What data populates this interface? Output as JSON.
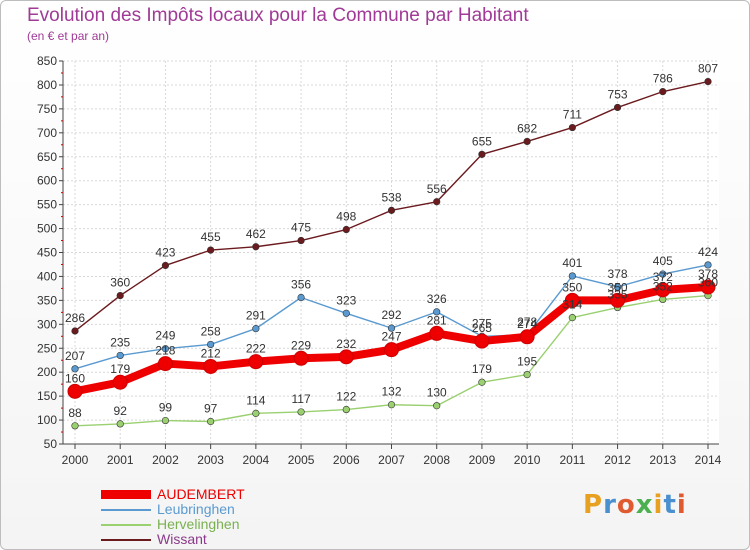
{
  "header": {
    "title": "Evolution des Impôts locaux pour la Commune par Habitant",
    "subtitle": "(en € et par an)"
  },
  "logo": {
    "text": "Proxiti",
    "colors": [
      "#e8a020",
      "#4a90d0",
      "#e05a30",
      "#4ab050",
      "#e8a020",
      "#4a90d0",
      "#e05a30"
    ]
  },
  "chart_data": {
    "type": "line",
    "x": [
      2000,
      2001,
      2002,
      2003,
      2004,
      2005,
      2006,
      2007,
      2008,
      2009,
      2010,
      2011,
      2012,
      2013,
      2014
    ],
    "ylim": [
      50,
      850
    ],
    "yticks": [
      50,
      100,
      150,
      200,
      250,
      300,
      350,
      400,
      450,
      500,
      550,
      600,
      650,
      700,
      750,
      800,
      850
    ],
    "grid": true,
    "legend_position": "bottom-left",
    "series": [
      {
        "name": "Wissant",
        "color": "#6b1a1e",
        "values": [
          286,
          360,
          423,
          455,
          462,
          475,
          498,
          538,
          556,
          655,
          682,
          711,
          753,
          786,
          807
        ],
        "labels": [
          "286",
          "360",
          "423",
          "455",
          "462",
          "475",
          "498",
          "538",
          "556",
          "655",
          "682",
          "711",
          "753",
          "786",
          "807"
        ]
      },
      {
        "name": "Leubringhen",
        "color": "#5a9ad0",
        "values": [
          207,
          235,
          249,
          258,
          291,
          356,
          323,
          292,
          326,
          275,
          278,
          401,
          378,
          405,
          424
        ],
        "labels": [
          "207",
          "235",
          "249",
          "258",
          "291",
          "356",
          "323",
          "292",
          "326",
          "275",
          "278",
          "401",
          "378",
          "405",
          "424"
        ]
      },
      {
        "name": "Hervelinghen",
        "color": "#9ad070",
        "values": [
          88,
          92,
          99,
          97,
          114,
          117,
          122,
          132,
          130,
          179,
          195,
          314,
          335,
          352,
          360
        ],
        "labels": [
          "88",
          "92",
          "99",
          "97",
          "114",
          "117",
          "122",
          "132",
          "130",
          "179",
          "195",
          "314",
          "335",
          "352",
          "360"
        ]
      },
      {
        "name": "AUDEMBERT",
        "color": "#ee0000",
        "values": [
          160,
          179,
          218,
          212,
          222,
          229,
          232,
          247,
          281,
          265,
          274,
          350,
          350,
          372,
          378
        ],
        "labels": [
          "160",
          "179",
          "218",
          "212",
          "222",
          "229",
          "232",
          "247",
          "281",
          "265",
          "274",
          "350",
          "350",
          "372",
          "378"
        ]
      }
    ]
  },
  "legend": [
    {
      "name": "AUDEMBERT",
      "color": "#ee0000",
      "text_color": "#ee0000"
    },
    {
      "name": "Leubringhen",
      "color": "#5a9ad0",
      "text_color": "#5a9ad0"
    },
    {
      "name": "Hervelinghen",
      "color": "#9ad070",
      "text_color": "#7ab050"
    },
    {
      "name": "Wissant",
      "color": "#6b1a1e",
      "text_color": "#8a3a8a"
    }
  ]
}
